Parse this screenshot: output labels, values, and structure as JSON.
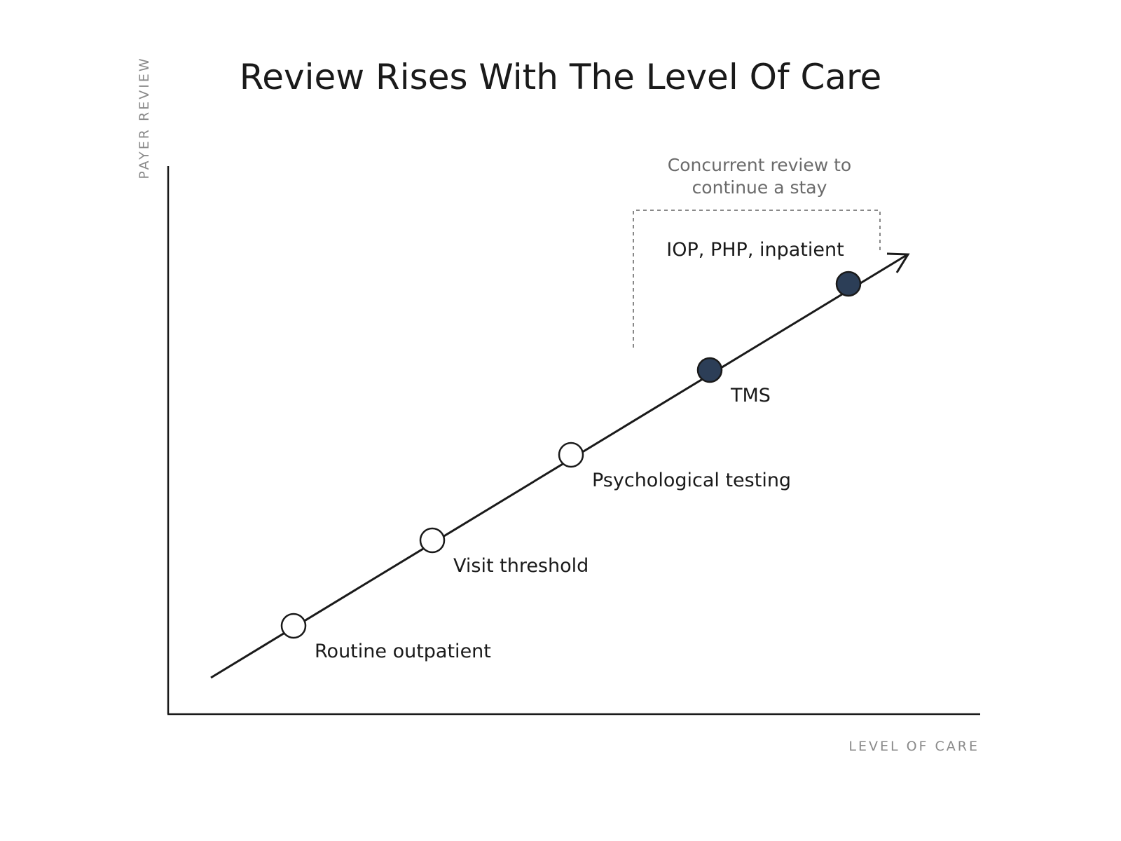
{
  "title": "Review Rises With The Level Of Care",
  "y_axis_label": "PAYER REVIEW",
  "x_axis_label": "LEVEL OF CARE",
  "nodes": [
    {
      "label": "Routine outpatient",
      "highlighted": false
    },
    {
      "label": "Visit threshold",
      "highlighted": false
    },
    {
      "label": "Psychological testing",
      "highlighted": false
    },
    {
      "label": "TMS",
      "highlighted": true
    },
    {
      "label": "IOP, PHP, inpatient",
      "highlighted": true
    }
  ],
  "annotation": {
    "lines": [
      "Concurrent review to",
      "continue a stay"
    ]
  }
}
